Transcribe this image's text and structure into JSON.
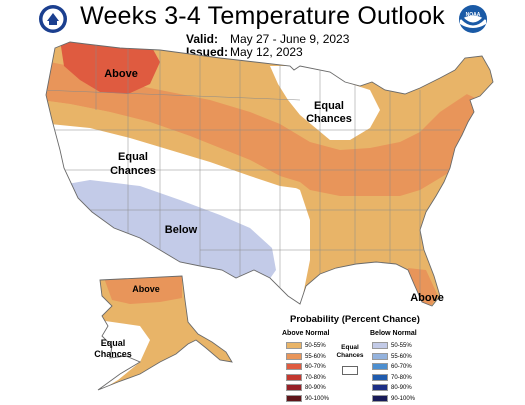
{
  "title": "Weeks 3-4 Temperature Outlook",
  "valid": {
    "label": "Valid:",
    "value": "May 27 - June 9, 2023"
  },
  "issued": {
    "label": "Issued:",
    "value": "May 12, 2023"
  },
  "logos": {
    "left_icon": "doc-seal-icon",
    "right_icon": "noaa-logo-icon",
    "right_text": "NOAA"
  },
  "map_labels": {
    "above_nw": "Above",
    "equal_great_lakes": [
      "Equal",
      "Chances"
    ],
    "equal_west": [
      "Equal",
      "Chances"
    ],
    "below_sw": "Below",
    "above_alaska": "Above",
    "equal_alaska": [
      "Equal",
      "Chances"
    ],
    "above_florida": "Above"
  },
  "legend": {
    "title": "Probability (Percent Chance)",
    "above_normal_label": "Above Normal",
    "below_normal_label": "Below Normal",
    "equal_chances_label": [
      "Equal",
      "Chances"
    ],
    "above": [
      {
        "label": "50-55%",
        "color": "#e8b468"
      },
      {
        "label": "55-60%",
        "color": "#e8955a"
      },
      {
        "label": "60-70%",
        "color": "#df5b40"
      },
      {
        "label": "70-80%",
        "color": "#c3382f"
      },
      {
        "label": "80-90%",
        "color": "#962027"
      },
      {
        "label": "90-100%",
        "color": "#5e1419"
      }
    ],
    "below": [
      {
        "label": "50-55%",
        "color": "#c3cbe8"
      },
      {
        "label": "55-60%",
        "color": "#93b2dd"
      },
      {
        "label": "60-70%",
        "color": "#4d8fd0"
      },
      {
        "label": "70-80%",
        "color": "#1f5bae"
      },
      {
        "label": "80-90%",
        "color": "#1c2f86"
      },
      {
        "label": "90-100%",
        "color": "#171a57"
      }
    ],
    "equal_color": "#ffffff"
  }
}
